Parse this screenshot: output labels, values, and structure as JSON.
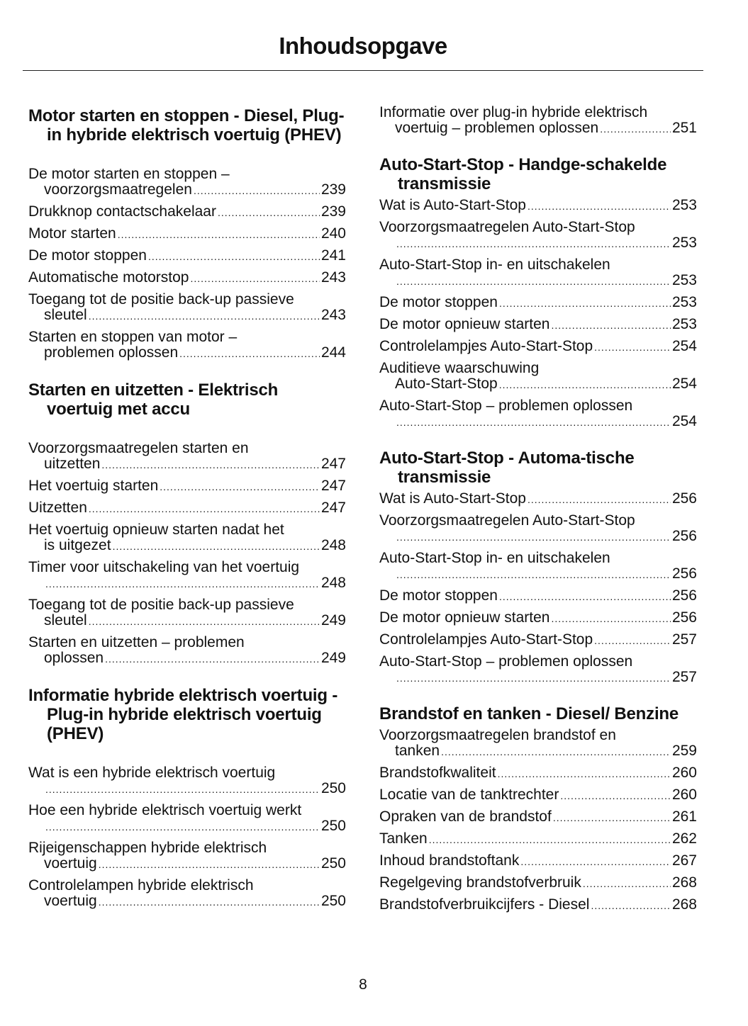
{
  "title": "Inhoudsopgave",
  "page_number": "8",
  "left": [
    {
      "heading": "Motor starten en stoppen - Diesel, Plug-in hybride elektrisch voertuig (PHEV)",
      "entries": [
        {
          "text": "De motor starten en stoppen –",
          "cont": "voorzorgsmaatregelen",
          "page": "239"
        },
        {
          "text": "Drukknop contactschakelaar",
          "page": "239"
        },
        {
          "text": "Motor starten",
          "page": "240"
        },
        {
          "text": "De motor stoppen",
          "page": "241"
        },
        {
          "text": "Automatische motorstop",
          "page": "243"
        },
        {
          "text": "Toegang tot de positie back-up passieve",
          "cont": "sleutel",
          "page": "243"
        },
        {
          "text": "Starten en stoppen van motor –",
          "cont": "problemen oplossen",
          "page": "244"
        }
      ]
    },
    {
      "heading": "Starten en uitzetten - Elektrisch voertuig met accu",
      "entries": [
        {
          "text": "Voorzorgsmaatregelen starten en",
          "cont": "uitzetten",
          "page": "247"
        },
        {
          "text": "Het voertuig starten",
          "page": "247"
        },
        {
          "text": "Uitzetten",
          "page": "247"
        },
        {
          "text": "Het voertuig opnieuw starten nadat het",
          "cont": "is uitgezet",
          "page": "248"
        },
        {
          "text": "Timer voor uitschakeling van het voertuig",
          "cont": "",
          "page": "248"
        },
        {
          "text": "Toegang tot de positie back-up passieve",
          "cont": "sleutel",
          "page": "249"
        },
        {
          "text": "Starten en uitzetten – problemen",
          "cont": "oplossen",
          "page": "249"
        }
      ]
    },
    {
      "heading": "Informatie hybride elektrisch voertuig - Plug-in hybride elektrisch voertuig (PHEV)",
      "entries": [
        {
          "text": "Wat is een hybride elektrisch voertuig",
          "cont": "",
          "page": "250"
        },
        {
          "text": "Hoe een hybride elektrisch voertuig werkt",
          "cont": "",
          "page": "250"
        },
        {
          "text": "Rijeigenschappen hybride elektrisch",
          "cont": "voertuig",
          "page": "250"
        },
        {
          "text": "Controlelampen hybride elektrisch",
          "cont": "voertuig",
          "page": "250"
        }
      ]
    }
  ],
  "right": [
    {
      "heading": "",
      "entries": [
        {
          "text": "Informatie over plug-in hybride elektrisch",
          "cont": "voertuig – problemen oplossen",
          "page": "251"
        }
      ]
    },
    {
      "heading": "Auto-Start-Stop - Handge-schakelde transmissie",
      "entries": [
        {
          "text": "Wat is Auto-Start-Stop",
          "page": "253"
        },
        {
          "text": "Voorzorgsmaatregelen Auto-Start-Stop",
          "cont": "",
          "page": "253"
        },
        {
          "text": "Auto-Start-Stop in- en uitschakelen",
          "cont": "",
          "page": "253"
        },
        {
          "text": "De motor stoppen",
          "page": "253"
        },
        {
          "text": "De motor opnieuw starten",
          "page": "253"
        },
        {
          "text": "Controlelampjes Auto-Start-Stop",
          "page": "254"
        },
        {
          "text": "Auditieve waarschuwing",
          "cont": "Auto-Start-Stop",
          "page": "254"
        },
        {
          "text": "Auto-Start-Stop – problemen oplossen",
          "cont": "",
          "page": "254"
        }
      ]
    },
    {
      "heading": "Auto-Start-Stop - Automa-tische transmissie",
      "entries": [
        {
          "text": "Wat is Auto-Start-Stop",
          "page": "256"
        },
        {
          "text": "Voorzorgsmaatregelen Auto-Start-Stop",
          "cont": "",
          "page": "256"
        },
        {
          "text": "Auto-Start-Stop in- en uitschakelen",
          "cont": "",
          "page": "256"
        },
        {
          "text": "De motor stoppen",
          "page": "256"
        },
        {
          "text": "De motor opnieuw starten",
          "page": "256"
        },
        {
          "text": "Controlelampjes Auto-Start-Stop",
          "page": "257"
        },
        {
          "text": "Auto-Start-Stop – problemen oplossen",
          "cont": "",
          "page": "257"
        }
      ]
    },
    {
      "heading": "Brandstof en tanken - Diesel/ Benzine",
      "entries": [
        {
          "text": "Voorzorgsmaatregelen brandstof en",
          "cont": "tanken",
          "page": "259"
        },
        {
          "text": "Brandstofkwaliteit",
          "page": "260"
        },
        {
          "text": "Locatie van de tanktrechter",
          "page": "260"
        },
        {
          "text": "Opraken van de brandstof",
          "page": "261"
        },
        {
          "text": "Tanken",
          "page": "262"
        },
        {
          "text": "Inhoud brandstoftank",
          "page": "267"
        },
        {
          "text": "Regelgeving brandstofverbruik",
          "page": "268"
        },
        {
          "text": "Brandstofverbruikcijfers - Diesel",
          "page": "268"
        }
      ]
    }
  ]
}
